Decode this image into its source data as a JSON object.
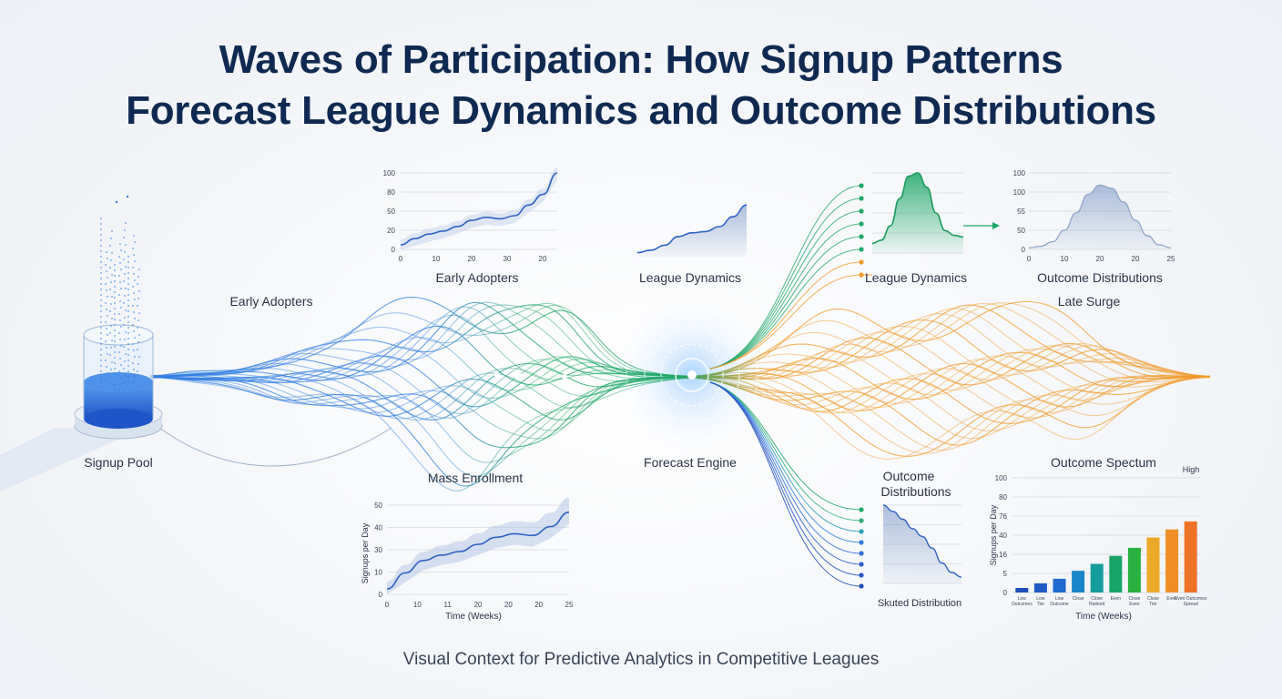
{
  "title": {
    "line1": "Waves of Participation: How Signup Patterns",
    "line2": "Forecast League Dynamics and Outcome Distributions"
  },
  "footer": "Visual Context for Predictive Analytics in Competitive Leagues",
  "labels": {
    "signup_pool": "Signup Pool",
    "early_adopters": "Early Adopters",
    "mass_enrollment": "Mass Enrollment",
    "forecast_engine": "Forecast Engine",
    "late_surge": "Late Surge",
    "outcome_distributions_line1": "Outcome",
    "outcome_distributions_line2": "Distributions",
    "skewed_distribution": "Skuted Distribution",
    "outcome_spectrum": "Outcome Spectum"
  },
  "colors": {
    "blue": "#2f7de1",
    "green": "#1fa768",
    "orange": "#f19a2a",
    "navy": "#0f2a52"
  },
  "chart_data": [
    {
      "id": "early-adopters-chart",
      "type": "line",
      "title": "Early Adopters",
      "x_ticks": [
        "0",
        "10",
        "20",
        "30",
        "20"
      ],
      "y_ticks": [
        "0",
        "20",
        "50",
        "80",
        "100"
      ],
      "ylim": [
        0,
        100
      ],
      "values": [
        6,
        14,
        20,
        24,
        30,
        38,
        42,
        40,
        44,
        58,
        72,
        100
      ]
    },
    {
      "id": "league-dynamics-mini",
      "type": "area",
      "title": "League Dynamics",
      "values": [
        8,
        12,
        20,
        34,
        40,
        42,
        50,
        66,
        85
      ]
    },
    {
      "id": "league-dynamics-bell",
      "type": "area",
      "title": "League Dynamics",
      "values": [
        12,
        16,
        34,
        68,
        96,
        100,
        82,
        50,
        28,
        22,
        20
      ]
    },
    {
      "id": "outcome-distributions-chart",
      "type": "area",
      "title": "Outcome Distributions",
      "x_ticks": [
        "0",
        "10",
        "20",
        "20",
        "25"
      ],
      "y_ticks": [
        "0",
        "50",
        "55",
        "100",
        "100"
      ],
      "values": [
        2,
        4,
        10,
        25,
        48,
        72,
        84,
        80,
        62,
        38,
        18,
        6,
        2
      ]
    },
    {
      "id": "mass-enrollment-chart",
      "type": "line",
      "title": "Mass Enrollment",
      "xlabel": "Time (Weeks)",
      "ylabel": "Signups per Day",
      "x_ticks": [
        "0",
        "10",
        "11",
        "20",
        "20",
        "20",
        "25"
      ],
      "y_ticks": [
        "0",
        "10",
        "30",
        "40",
        "50"
      ],
      "values": [
        3,
        12,
        19,
        22,
        24,
        28,
        32,
        34,
        33,
        38,
        46
      ]
    },
    {
      "id": "skewed-distribution-chart",
      "type": "area",
      "title": "Skuted Distribution",
      "values": [
        100,
        92,
        82,
        70,
        60,
        45,
        26,
        14,
        8
      ]
    },
    {
      "id": "outcome-spectrum-chart",
      "type": "bar",
      "title": "Outcome Spectum",
      "xlabel": "Time (Weeks)",
      "ylabel": "Signups per Day",
      "annotation": "High",
      "y_ticks": [
        "0",
        "5",
        "16",
        "40",
        "76",
        "80",
        "100"
      ],
      "ylim": [
        0,
        100
      ],
      "categories": [
        "Low Outcomes",
        "Low Tier",
        "Low Outcome",
        "Close",
        "Close Ranked",
        "Even",
        "Close Even",
        "Close Tier",
        "Even",
        "Even Outcomes Spread"
      ],
      "values": [
        4,
        8,
        12,
        19,
        25,
        32,
        39,
        48,
        55,
        62
      ],
      "bar_colors": [
        "#1e50b8",
        "#1e5bc4",
        "#1e6ad0",
        "#1a86c8",
        "#169c9c",
        "#18a468",
        "#28b040",
        "#eda928",
        "#f08e26",
        "#ee7326"
      ]
    }
  ]
}
